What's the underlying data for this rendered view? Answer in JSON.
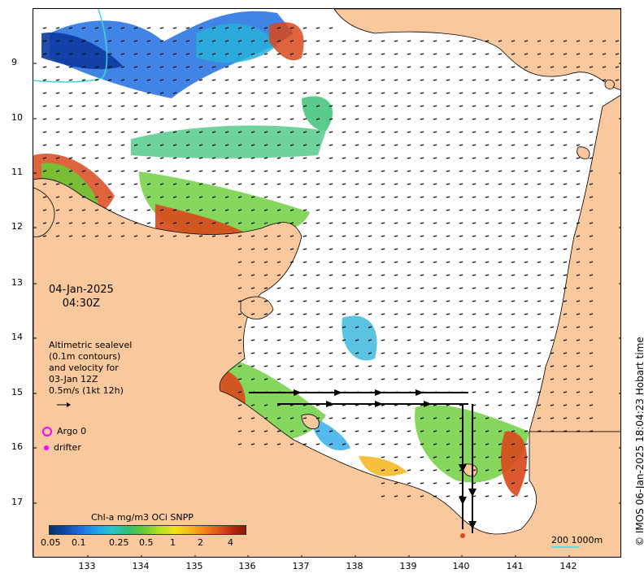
{
  "map": {
    "date": "04-Jan-2025",
    "time": "04:30Z",
    "y_axis_labels": [
      "9",
      "10",
      "11",
      "12",
      "13",
      "14",
      "15",
      "16",
      "17"
    ],
    "x_axis_labels": [
      "133",
      "134",
      "135",
      "136",
      "137",
      "138",
      "139",
      "140",
      "141",
      "142"
    ],
    "colors": {
      "land": "#f9c89c",
      "sea": "#ffffff",
      "arrow": "#000000",
      "marker": "#ff00ff"
    }
  },
  "legend": {
    "line1": "Altimetric sealevel",
    "line2": "(0.1m contours)",
    "line3": "and velocity for",
    "line4": "03-Jan 12Z",
    "line5": "0.5m/s (1kt 12h)",
    "argo_label": "Argo 0",
    "drifter_label": "drifter"
  },
  "colorbar": {
    "title": "Chl-a mg/m3 OCi SNPP",
    "ticks": [
      "0.05",
      "0.1",
      "0.25",
      "0.5",
      "1",
      "2",
      "4"
    ]
  },
  "scale": {
    "label": "200  1000m"
  },
  "credit": "© IMOS 06-Jan-2025 18:04:23 Hobart time"
}
